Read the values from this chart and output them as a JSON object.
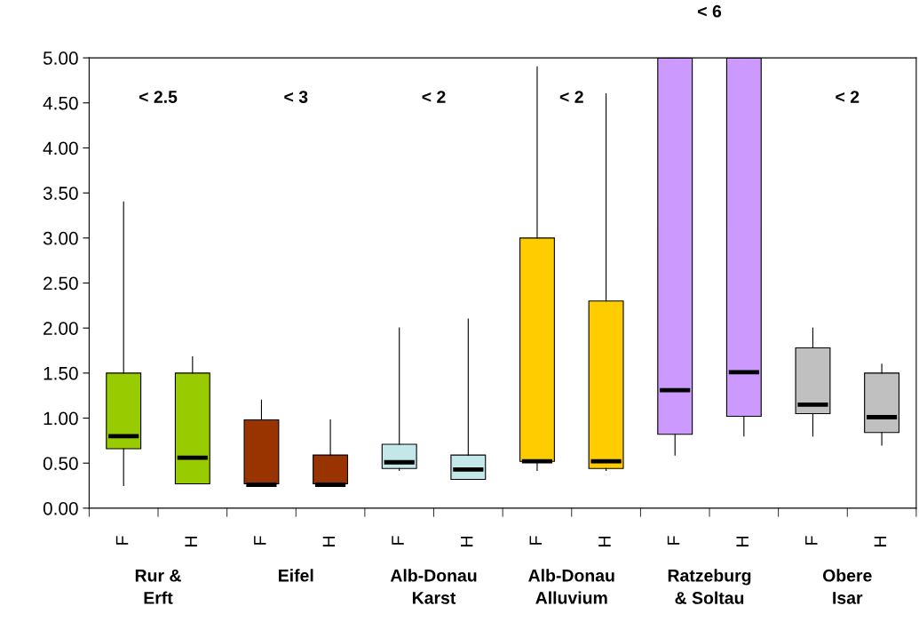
{
  "chart_data": {
    "type": "box",
    "categories": [
      "F",
      "H",
      "F",
      "H",
      "F",
      "H",
      "F",
      "H",
      "F",
      "H",
      "F",
      "H"
    ],
    "colors": [
      "#99cc00",
      "#99cc00",
      "#993300",
      "#993300",
      "#c4e8ea",
      "#c4e8ea",
      "#ffcc00",
      "#ffcc00",
      "#cc99ff",
      "#cc99ff",
      "#c0c0c0",
      "#c0c0c0"
    ],
    "boxes": [
      {
        "low": 0.25,
        "q1": 0.66,
        "median": 0.8,
        "q3": 1.5,
        "high": 3.4
      },
      {
        "low": 0.27,
        "q1": 0.27,
        "median": 0.56,
        "q3": 1.5,
        "high": 1.68
      },
      {
        "low": 0.26,
        "q1": 0.27,
        "median": 0.26,
        "q3": 0.98,
        "high": 1.2
      },
      {
        "low": 0.26,
        "q1": 0.27,
        "median": 0.26,
        "q3": 0.59,
        "high": 0.98
      },
      {
        "low": 0.42,
        "q1": 0.44,
        "median": 0.51,
        "q3": 0.71,
        "high": 2.0
      },
      {
        "low": 0.32,
        "q1": 0.32,
        "median": 0.43,
        "q3": 0.59,
        "high": 2.1
      },
      {
        "low": 0.42,
        "q1": 0.52,
        "median": 0.52,
        "q3": 3.0,
        "high": 4.9
      },
      {
        "low": 0.42,
        "q1": 0.44,
        "median": 0.52,
        "q3": 2.3,
        "high": 4.6
      },
      {
        "low": 0.59,
        "q1": 0.82,
        "median": 1.31,
        "q3": 5.0,
        "high": 5.0
      },
      {
        "low": 0.8,
        "q1": 1.02,
        "median": 1.51,
        "q3": 5.0,
        "high": 5.0
      },
      {
        "low": 0.8,
        "q1": 1.05,
        "median": 1.15,
        "q3": 1.78,
        "high": 2.0
      },
      {
        "low": 0.7,
        "q1": 0.84,
        "median": 1.01,
        "q3": 1.5,
        "high": 1.6
      }
    ],
    "ylim": [
      0,
      5
    ],
    "yticks": [
      {
        "value": 0,
        "label": "0.00"
      },
      {
        "value": 0.5,
        "label": "0.50"
      },
      {
        "value": 1,
        "label": "1.00"
      },
      {
        "value": 1.5,
        "label": "1.50"
      },
      {
        "value": 2,
        "label": "2.00"
      },
      {
        "value": 2.5,
        "label": "2.50"
      },
      {
        "value": 3,
        "label": "3.00"
      },
      {
        "value": 3.5,
        "label": "3.50"
      },
      {
        "value": 4,
        "label": "4.00"
      },
      {
        "value": 4.5,
        "label": "4.50"
      },
      {
        "value": 5,
        "label": "5.00"
      }
    ],
    "annotations": [
      "< 2.5",
      "< 3",
      "< 2",
      "< 2",
      "< 6",
      "< 2",
      "Rur &\nErft",
      "Eifel",
      "Alb-Donau\nKarst",
      "Alb-Donau\nAlluvium",
      "Ratzeburg\n& Soltau",
      "Obere\nIsar"
    ],
    "grid": false
  }
}
